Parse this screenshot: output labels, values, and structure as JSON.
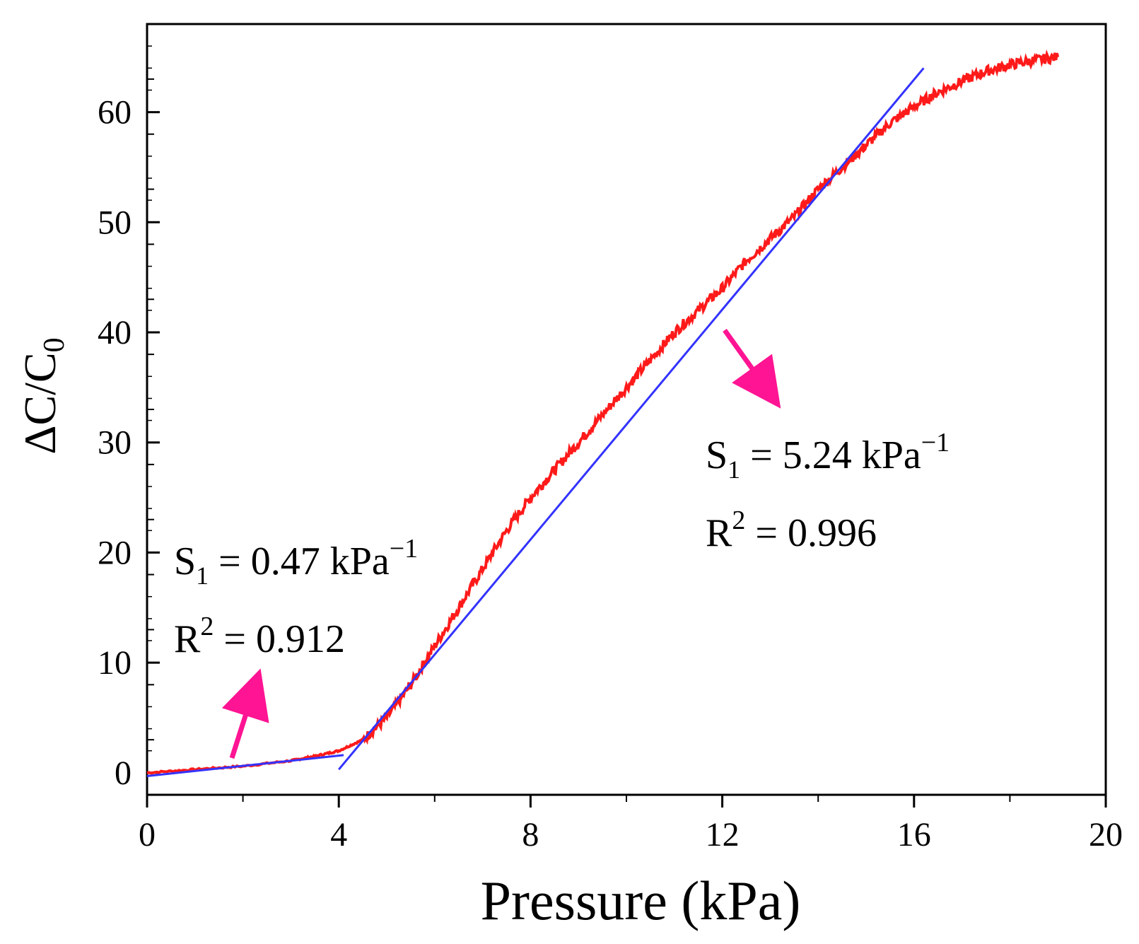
{
  "chart_data": {
    "type": "line",
    "xlabel": "Pressure (kPa)",
    "ylabel": {
      "main": "ΔC/C",
      "sub": "0"
    },
    "xlim": [
      0,
      20
    ],
    "ylim": [
      -2,
      68
    ],
    "x_ticks": [
      0,
      4,
      8,
      12,
      16,
      20
    ],
    "x_tick_labels": [
      "0",
      "4",
      "8",
      "12",
      "16",
      "20"
    ],
    "y_ticks": [
      0,
      10,
      20,
      30,
      40,
      50,
      60
    ],
    "y_tick_labels": [
      "0",
      "10",
      "20",
      "30",
      "40",
      "50",
      "60"
    ],
    "grid": false,
    "series": [
      {
        "name": "measured",
        "color": "#ff1a1a",
        "x": [
          0,
          1,
          2,
          3,
          3.5,
          4,
          4.5,
          5,
          5.5,
          6,
          6.5,
          7,
          7.5,
          8,
          8.5,
          9,
          9.5,
          10,
          10.5,
          11,
          11.5,
          12,
          12.5,
          13,
          13.5,
          14,
          14.5,
          15,
          15.5,
          16,
          16.5,
          17,
          17.5,
          18,
          18.5,
          19
        ],
        "y": [
          0,
          0.3,
          0.6,
          1.1,
          1.5,
          2.0,
          3.0,
          5.0,
          8.0,
          11.5,
          15.0,
          18.5,
          22.0,
          25.0,
          27.5,
          30.0,
          32.5,
          35.0,
          37.5,
          40.0,
          42.0,
          44.0,
          46.5,
          48.5,
          50.5,
          53.0,
          55.0,
          57.0,
          59.0,
          60.5,
          61.8,
          62.8,
          63.7,
          64.3,
          64.7,
          65.0
        ]
      },
      {
        "name": "fit-low",
        "color": "#3333ff",
        "x": [
          0,
          4.1
        ],
        "y": [
          -0.3,
          1.6
        ]
      },
      {
        "name": "fit-high",
        "color": "#3333ff",
        "x": [
          4.0,
          16.2
        ],
        "y": [
          0.3,
          64.0
        ]
      }
    ],
    "annotations": [
      {
        "name": "low",
        "s_prefix": "S",
        "s_sub": "1",
        "s_value": " = 0.47 kPa",
        "s_sup": "−1",
        "r_prefix": "R",
        "r_sup": "2",
        "r_value": " = 0.912",
        "arrow_color": "#ff1493"
      },
      {
        "name": "high",
        "s_prefix": "S",
        "s_sub": "1",
        "s_value": " = 5.24 kPa",
        "s_sup": "−1",
        "r_prefix": "R",
        "r_sup": "2",
        "r_value": " = 0.996",
        "arrow_color": "#ff1493"
      }
    ]
  }
}
